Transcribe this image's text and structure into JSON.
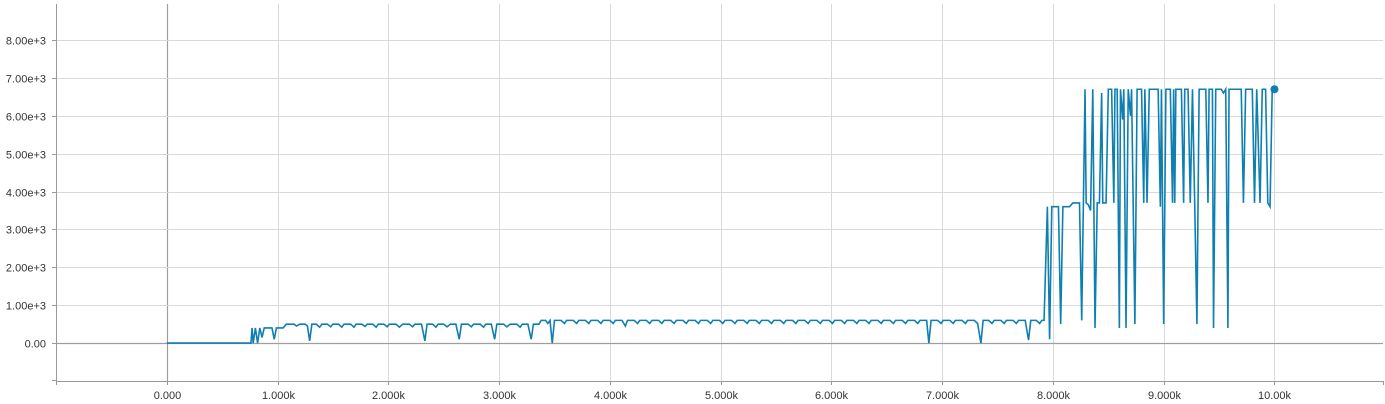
{
  "chart_data": {
    "type": "line",
    "title": "",
    "xlabel": "",
    "ylabel": "",
    "xlim": [
      -1000,
      10980
    ],
    "ylim": [
      -1000,
      8950
    ],
    "grid": true,
    "x_ticks": [
      0,
      1000,
      2000,
      3000,
      4000,
      5000,
      6000,
      7000,
      8000,
      9000,
      10000
    ],
    "x_tick_labels": [
      "0.000",
      "1.000k",
      "2.000k",
      "3.000k",
      "4.000k",
      "5.000k",
      "6.000k",
      "7.000k",
      "8.000k",
      "9.000k",
      "10.00k"
    ],
    "y_ticks": [
      0,
      1000,
      2000,
      3000,
      4000,
      5000,
      6000,
      7000,
      8000
    ],
    "y_tick_labels": [
      "0.00",
      "1.00e+3",
      "2.00e+3",
      "3.00e+3",
      "4.00e+3",
      "5.00e+3",
      "6.00e+3",
      "7.00e+3",
      "8.00e+3"
    ],
    "series_color": "#0f7fb2",
    "series": [
      {
        "values_xy": [
          [
            0,
            0
          ],
          [
            720,
            0
          ],
          [
            760,
            0
          ],
          [
            770,
            400
          ],
          [
            780,
            0
          ],
          [
            800,
            400
          ],
          [
            820,
            0
          ],
          [
            840,
            400
          ],
          [
            860,
            150
          ],
          [
            880,
            400
          ],
          [
            950,
            400
          ],
          [
            970,
            100
          ],
          [
            990,
            400
          ],
          [
            1050,
            400
          ],
          [
            1080,
            500
          ],
          [
            1150,
            500
          ],
          [
            1170,
            450
          ],
          [
            1200,
            500
          ],
          [
            1250,
            500
          ],
          [
            1270,
            450
          ],
          [
            1290,
            60
          ],
          [
            1310,
            500
          ],
          [
            1350,
            500
          ],
          [
            1380,
            420
          ],
          [
            1400,
            500
          ],
          [
            1450,
            500
          ],
          [
            1480,
            430
          ],
          [
            1500,
            500
          ],
          [
            1550,
            500
          ],
          [
            1580,
            420
          ],
          [
            1600,
            500
          ],
          [
            1660,
            500
          ],
          [
            1690,
            420
          ],
          [
            1710,
            500
          ],
          [
            1760,
            500
          ],
          [
            1790,
            440
          ],
          [
            1810,
            500
          ],
          [
            1860,
            500
          ],
          [
            1890,
            420
          ],
          [
            1910,
            500
          ],
          [
            1960,
            500
          ],
          [
            1990,
            430
          ],
          [
            2010,
            500
          ],
          [
            2070,
            500
          ],
          [
            2100,
            420
          ],
          [
            2130,
            500
          ],
          [
            2190,
            500
          ],
          [
            2220,
            430
          ],
          [
            2240,
            500
          ],
          [
            2300,
            500
          ],
          [
            2330,
            60
          ],
          [
            2350,
            500
          ],
          [
            2400,
            500
          ],
          [
            2430,
            420
          ],
          [
            2450,
            500
          ],
          [
            2500,
            500
          ],
          [
            2530,
            430
          ],
          [
            2560,
            500
          ],
          [
            2610,
            500
          ],
          [
            2640,
            100
          ],
          [
            2660,
            500
          ],
          [
            2720,
            500
          ],
          [
            2750,
            430
          ],
          [
            2770,
            500
          ],
          [
            2830,
            500
          ],
          [
            2860,
            420
          ],
          [
            2880,
            500
          ],
          [
            2930,
            500
          ],
          [
            2960,
            100
          ],
          [
            2980,
            500
          ],
          [
            3040,
            500
          ],
          [
            3070,
            430
          ],
          [
            3100,
            500
          ],
          [
            3160,
            500
          ],
          [
            3190,
            420
          ],
          [
            3210,
            500
          ],
          [
            3260,
            500
          ],
          [
            3290,
            100
          ],
          [
            3310,
            500
          ],
          [
            3360,
            500
          ],
          [
            3380,
            600
          ],
          [
            3420,
            600
          ],
          [
            3440,
            520
          ],
          [
            3460,
            600
          ],
          [
            3480,
            0
          ],
          [
            3500,
            600
          ],
          [
            3560,
            600
          ],
          [
            3590,
            520
          ],
          [
            3610,
            600
          ],
          [
            3670,
            600
          ],
          [
            3700,
            520
          ],
          [
            3720,
            600
          ],
          [
            3780,
            600
          ],
          [
            3810,
            520
          ],
          [
            3830,
            600
          ],
          [
            3890,
            600
          ],
          [
            3920,
            520
          ],
          [
            3940,
            600
          ],
          [
            4000,
            600
          ],
          [
            4030,
            520
          ],
          [
            4050,
            600
          ],
          [
            4110,
            600
          ],
          [
            4140,
            450
          ],
          [
            4160,
            600
          ],
          [
            4220,
            600
          ],
          [
            4250,
            520
          ],
          [
            4270,
            600
          ],
          [
            4330,
            600
          ],
          [
            4360,
            520
          ],
          [
            4380,
            600
          ],
          [
            4440,
            600
          ],
          [
            4470,
            520
          ],
          [
            4490,
            600
          ],
          [
            4550,
            600
          ],
          [
            4580,
            520
          ],
          [
            4600,
            600
          ],
          [
            4660,
            600
          ],
          [
            4690,
            520
          ],
          [
            4710,
            600
          ],
          [
            4770,
            600
          ],
          [
            4800,
            520
          ],
          [
            4820,
            600
          ],
          [
            4880,
            600
          ],
          [
            4910,
            520
          ],
          [
            4930,
            600
          ],
          [
            4990,
            600
          ],
          [
            5020,
            520
          ],
          [
            5040,
            600
          ],
          [
            5100,
            600
          ],
          [
            5130,
            520
          ],
          [
            5150,
            600
          ],
          [
            5210,
            600
          ],
          [
            5240,
            520
          ],
          [
            5260,
            600
          ],
          [
            5320,
            600
          ],
          [
            5350,
            520
          ],
          [
            5370,
            600
          ],
          [
            5430,
            600
          ],
          [
            5460,
            520
          ],
          [
            5480,
            600
          ],
          [
            5540,
            600
          ],
          [
            5570,
            520
          ],
          [
            5590,
            600
          ],
          [
            5650,
            600
          ],
          [
            5680,
            520
          ],
          [
            5700,
            600
          ],
          [
            5760,
            600
          ],
          [
            5790,
            520
          ],
          [
            5810,
            600
          ],
          [
            5870,
            600
          ],
          [
            5900,
            520
          ],
          [
            5920,
            600
          ],
          [
            5980,
            600
          ],
          [
            6010,
            520
          ],
          [
            6030,
            600
          ],
          [
            6090,
            600
          ],
          [
            6120,
            520
          ],
          [
            6140,
            600
          ],
          [
            6200,
            600
          ],
          [
            6230,
            520
          ],
          [
            6250,
            600
          ],
          [
            6310,
            600
          ],
          [
            6340,
            520
          ],
          [
            6360,
            600
          ],
          [
            6420,
            600
          ],
          [
            6450,
            520
          ],
          [
            6470,
            600
          ],
          [
            6530,
            600
          ],
          [
            6560,
            520
          ],
          [
            6580,
            600
          ],
          [
            6640,
            600
          ],
          [
            6670,
            520
          ],
          [
            6690,
            600
          ],
          [
            6750,
            600
          ],
          [
            6780,
            520
          ],
          [
            6800,
            600
          ],
          [
            6860,
            600
          ],
          [
            6880,
            0
          ],
          [
            6900,
            600
          ],
          [
            6960,
            600
          ],
          [
            6990,
            520
          ],
          [
            7010,
            600
          ],
          [
            7070,
            600
          ],
          [
            7100,
            520
          ],
          [
            7120,
            600
          ],
          [
            7180,
            600
          ],
          [
            7210,
            520
          ],
          [
            7230,
            600
          ],
          [
            7290,
            600
          ],
          [
            7320,
            520
          ],
          [
            7350,
            0
          ],
          [
            7370,
            600
          ],
          [
            7420,
            600
          ],
          [
            7450,
            520
          ],
          [
            7470,
            600
          ],
          [
            7530,
            600
          ],
          [
            7560,
            520
          ],
          [
            7580,
            600
          ],
          [
            7640,
            600
          ],
          [
            7670,
            520
          ],
          [
            7690,
            600
          ],
          [
            7750,
            600
          ],
          [
            7780,
            80
          ],
          [
            7800,
            600
          ],
          [
            7850,
            600
          ],
          [
            7880,
            520
          ],
          [
            7900,
            600
          ],
          [
            7920,
            600
          ],
          [
            7950,
            3600
          ],
          [
            7970,
            100
          ],
          [
            7990,
            3600
          ],
          [
            8050,
            3600
          ],
          [
            8070,
            500
          ],
          [
            8090,
            3600
          ],
          [
            8150,
            3600
          ],
          [
            8180,
            3700
          ],
          [
            8240,
            3700
          ],
          [
            8260,
            600
          ],
          [
            8290,
            6700
          ],
          [
            8300,
            3700
          ],
          [
            8320,
            3650
          ],
          [
            8340,
            3500
          ],
          [
            8360,
            6700
          ],
          [
            8380,
            400
          ],
          [
            8400,
            3700
          ],
          [
            8420,
            3700
          ],
          [
            8440,
            6600
          ],
          [
            8450,
            3700
          ],
          [
            8480,
            3700
          ],
          [
            8500,
            6700
          ],
          [
            8530,
            6700
          ],
          [
            8550,
            3700
          ],
          [
            8560,
            6700
          ],
          [
            8580,
            6700
          ],
          [
            8600,
            400
          ],
          [
            8610,
            6700
          ],
          [
            8630,
            5900
          ],
          [
            8640,
            6700
          ],
          [
            8660,
            400
          ],
          [
            8680,
            6700
          ],
          [
            8700,
            6000
          ],
          [
            8710,
            6700
          ],
          [
            8740,
            500
          ],
          [
            8760,
            6700
          ],
          [
            8800,
            6700
          ],
          [
            8820,
            3700
          ],
          [
            8830,
            6700
          ],
          [
            8850,
            3700
          ],
          [
            8870,
            6700
          ],
          [
            8950,
            6700
          ],
          [
            8970,
            3600
          ],
          [
            8980,
            6700
          ],
          [
            9000,
            500
          ],
          [
            9020,
            6700
          ],
          [
            9060,
            6700
          ],
          [
            9080,
            3700
          ],
          [
            9090,
            6700
          ],
          [
            9100,
            3700
          ],
          [
            9110,
            6700
          ],
          [
            9160,
            6700
          ],
          [
            9180,
            3700
          ],
          [
            9190,
            6700
          ],
          [
            9220,
            6700
          ],
          [
            9240,
            3700
          ],
          [
            9260,
            6700
          ],
          [
            9280,
            3700
          ],
          [
            9300,
            500
          ],
          [
            9320,
            6700
          ],
          [
            9380,
            6700
          ],
          [
            9400,
            3700
          ],
          [
            9410,
            6700
          ],
          [
            9440,
            6700
          ],
          [
            9450,
            400
          ],
          [
            9470,
            6700
          ],
          [
            9520,
            6700
          ],
          [
            9540,
            6600
          ],
          [
            9560,
            6700
          ],
          [
            9580,
            400
          ],
          [
            9590,
            6700
          ],
          [
            9700,
            6700
          ],
          [
            9720,
            3700
          ],
          [
            9740,
            6700
          ],
          [
            9800,
            6700
          ],
          [
            9820,
            3700
          ],
          [
            9840,
            6700
          ],
          [
            9870,
            3700
          ],
          [
            9890,
            6700
          ],
          [
            9920,
            6700
          ],
          [
            9940,
            3700
          ],
          [
            9960,
            3600
          ],
          [
            9980,
            6700
          ],
          [
            10000,
            6700
          ]
        ]
      }
    ]
  }
}
